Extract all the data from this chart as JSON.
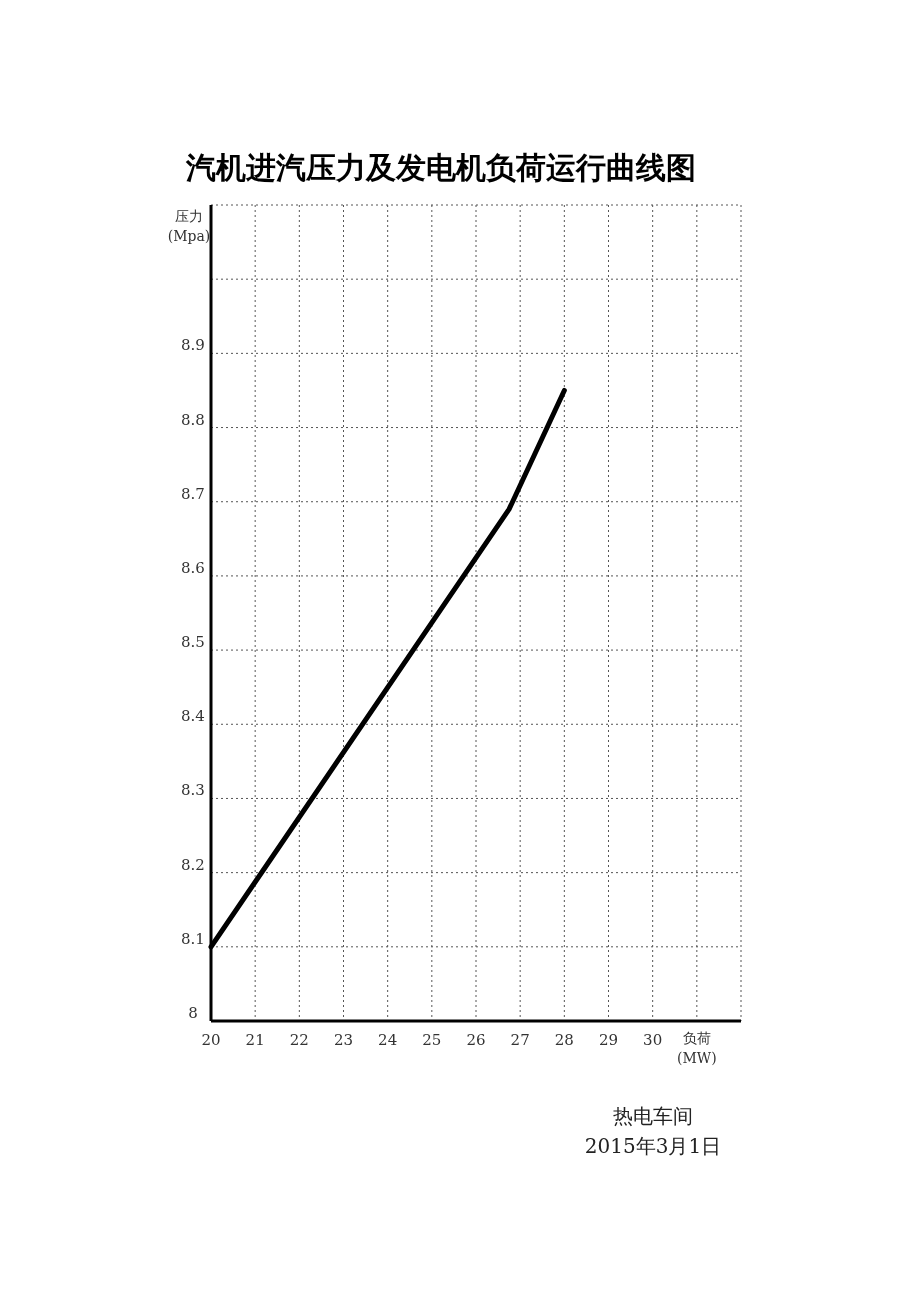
{
  "chart_data": {
    "type": "line",
    "title": "汽机进汽压力及发电机负荷运行曲线图",
    "xlabel": "负荷\n(MW)",
    "ylabel": "压力\n(Mpa)",
    "x": [
      20,
      26.75,
      28
    ],
    "series": [
      {
        "color": "#000000",
        "values": [
          8.1,
          8.69,
          8.85
        ]
      }
    ],
    "xlim": [
      20,
      32
    ],
    "xticks": [
      20,
      21,
      22,
      23,
      24,
      25,
      26,
      27,
      28,
      29,
      30,
      {
        "value": 31,
        "label": null
      },
      {
        "value": 32,
        "label": null
      }
    ],
    "ylim": [
      8,
      9.1
    ],
    "yticks": [
      8,
      8.1,
      8.2,
      8.3,
      8.4,
      8.5,
      8.6,
      8.7,
      8.8,
      8.9,
      {
        "value": 9,
        "label": null
      },
      {
        "value": 9.1,
        "label": null
      }
    ],
    "grid": true,
    "marker": "none",
    "line_style": "solid",
    "annotations": [
      "热电车间",
      "2015年3月1日"
    ]
  }
}
